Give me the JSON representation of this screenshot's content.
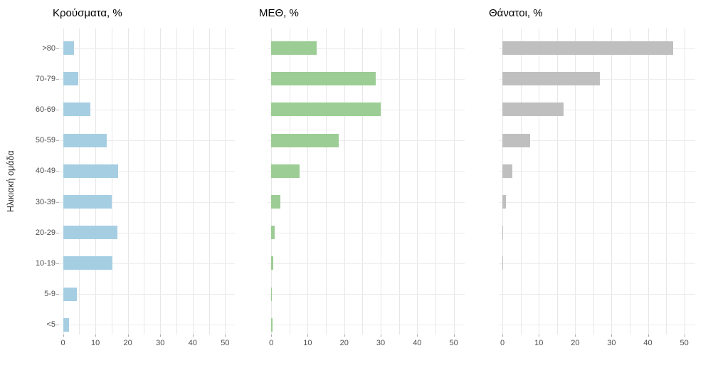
{
  "figure": {
    "y_axis_title": "Ηλικιακή ομάδα",
    "background_color": "#ffffff",
    "gridline_color": "#e7e7e7",
    "axis_text_color": "#4d4d4d"
  },
  "chart_data": [
    {
      "type": "bar",
      "orientation": "horizontal",
      "title": "Κρούσματα, %",
      "color": "#a6cee3",
      "categories": [
        ">80",
        "70-79",
        "60-69",
        "50-59",
        "40-49",
        "30-39",
        "20-29",
        "10-19",
        "5-9",
        "<5"
      ],
      "values": [
        3.3,
        4.6,
        8.4,
        13.4,
        17.1,
        15.0,
        16.8,
        15.3,
        4.2,
        1.8
      ],
      "xlim": [
        0,
        50
      ],
      "x_ticks": [
        0,
        10,
        20,
        30,
        40,
        50
      ],
      "gridline_step": 5,
      "ylabel": "Ηλικιακή ομάδα",
      "legend": "none",
      "grid": "on"
    },
    {
      "type": "bar",
      "orientation": "horizontal",
      "title": "ΜΕΘ, %",
      "color": "#9ccd94",
      "categories": [
        ">80",
        "70-79",
        "60-69",
        "50-59",
        "40-49",
        "30-39",
        "20-29",
        "10-19",
        "5-9",
        "<5"
      ],
      "values": [
        12.4,
        28.7,
        30.0,
        18.4,
        7.8,
        2.6,
        1.0,
        0.5,
        0.2,
        0.3
      ],
      "xlim": [
        0,
        50
      ],
      "x_ticks": [
        0,
        10,
        20,
        30,
        40,
        50
      ],
      "gridline_step": 5,
      "ylabel": "",
      "legend": "none",
      "grid": "on"
    },
    {
      "type": "bar",
      "orientation": "horizontal",
      "title": "Θάνατοι, %",
      "color": "#bfbfbf",
      "categories": [
        ">80",
        "70-79",
        "60-69",
        "50-59",
        "40-49",
        "30-39",
        "20-29",
        "10-19",
        "5-9",
        "<5"
      ],
      "values": [
        46.9,
        26.7,
        16.9,
        7.6,
        2.7,
        1.0,
        0.2,
        0.1,
        0,
        0
      ],
      "xlim": [
        0,
        50
      ],
      "x_ticks": [
        0,
        10,
        20,
        30,
        40,
        50
      ],
      "gridline_step": 5,
      "ylabel": "",
      "legend": "none",
      "grid": "on"
    }
  ]
}
